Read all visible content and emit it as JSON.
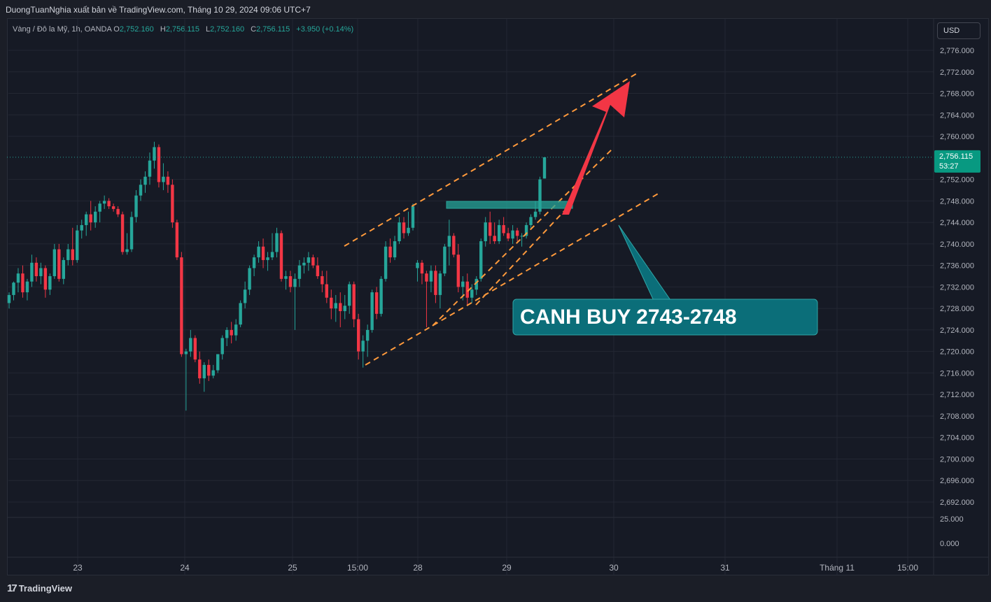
{
  "header": {
    "publisher": "DuongTuanNghia xuất bản về TradingView.com, Tháng 10 29, 2024 09:06 UTC+7"
  },
  "legend": {
    "symbol": "Vàng / Đô la Mỹ, 1h, OANDA",
    "open_label": "O",
    "open": "2,752.160",
    "high_label": "H",
    "high": "2,756.115",
    "low_label": "L",
    "low": "2,752.160",
    "close_label": "C",
    "close": "2,756.115",
    "change": "+3.950 (+0.14%)"
  },
  "currency": "USD",
  "price_tag": {
    "price": "2,756.115",
    "countdown": "53:27"
  },
  "annotation": {
    "text": "CANH BUY 2743-2748"
  },
  "footer": {
    "brand": "TradingView"
  },
  "colors": {
    "up": "#26a69a",
    "down": "#f23645",
    "channel": "#ff9a3c",
    "zone": "#26a69a",
    "arrow": "#f23645",
    "callout": "#0b6e79"
  },
  "chart_data": {
    "type": "candlestick",
    "title": "",
    "xlabel": "",
    "ylabel": "",
    "y_ticks": [
      "2,776.000",
      "2,772.000",
      "2,768.000",
      "2,764.000",
      "2,760.000",
      "2,752.000",
      "2,748.000",
      "2,744.000",
      "2,740.000",
      "2,736.000",
      "2,732.000",
      "2,728.000",
      "2,724.000",
      "2,720.000",
      "2,716.000",
      "2,712.000",
      "2,708.000",
      "2,704.000",
      "2,700.000",
      "2,696.000",
      "2,692.000"
    ],
    "ylim": [
      2689.0,
      2778.0
    ],
    "x_ticks": [
      "23",
      "24",
      "25",
      "15:00",
      "28",
      "29",
      "30",
      "31",
      "Tháng 11",
      "15:00"
    ],
    "volume_ticks": [
      "25.000",
      "0.000"
    ],
    "last_price": 2756.115,
    "ohlc": [
      [
        2729.0,
        2731.0,
        2728.0,
        2730.5
      ],
      [
        2730.5,
        2733.0,
        2729.5,
        2732.8
      ],
      [
        2732.8,
        2735.5,
        2731.0,
        2734.5
      ],
      [
        2734.5,
        2736.0,
        2730.0,
        2731.0
      ],
      [
        2731.0,
        2733.5,
        2729.5,
        2733.0
      ],
      [
        2733.0,
        2738.0,
        2732.0,
        2736.5
      ],
      [
        2736.5,
        2737.5,
        2733.0,
        2734.0
      ],
      [
        2734.0,
        2736.5,
        2732.5,
        2735.5
      ],
      [
        2735.5,
        2736.0,
        2730.0,
        2731.5
      ],
      [
        2731.5,
        2734.5,
        2730.5,
        2734.0
      ],
      [
        2734.0,
        2740.0,
        2733.5,
        2739.0
      ],
      [
        2739.0,
        2740.0,
        2733.0,
        2733.5
      ],
      [
        2733.5,
        2737.5,
        2732.5,
        2737.0
      ],
      [
        2737.0,
        2740.0,
        2736.0,
        2739.0
      ],
      [
        2739.0,
        2743.0,
        2736.0,
        2737.0
      ],
      [
        2737.0,
        2743.5,
        2736.5,
        2742.5
      ],
      [
        2742.5,
        2744.5,
        2741.0,
        2743.5
      ],
      [
        2743.5,
        2746.0,
        2741.5,
        2745.5
      ],
      [
        2745.5,
        2748.0,
        2742.5,
        2744.0
      ],
      [
        2744.0,
        2747.0,
        2743.0,
        2746.0
      ],
      [
        2746.0,
        2748.0,
        2744.0,
        2747.5
      ],
      [
        2747.5,
        2749.0,
        2746.5,
        2748.0
      ],
      [
        2748.0,
        2748.5,
        2746.5,
        2747.0
      ],
      [
        2747.0,
        2747.5,
        2746.0,
        2746.5
      ],
      [
        2746.5,
        2747.0,
        2745.0,
        2745.5
      ],
      [
        2745.5,
        2746.0,
        2738.0,
        2738.5
      ],
      [
        2738.5,
        2742.0,
        2738.0,
        2739.0
      ],
      [
        2739.0,
        2746.0,
        2738.5,
        2745.0
      ],
      [
        2745.0,
        2750.0,
        2744.0,
        2749.0
      ],
      [
        2749.0,
        2752.0,
        2748.0,
        2751.0
      ],
      [
        2751.0,
        2753.5,
        2749.5,
        2752.5
      ],
      [
        2752.5,
        2757.0,
        2751.0,
        2755.5
      ],
      [
        2755.5,
        2759.0,
        2754.0,
        2758.0
      ],
      [
        2758.0,
        2758.5,
        2750.5,
        2751.5
      ],
      [
        2751.5,
        2755.0,
        2750.0,
        2752.5
      ],
      [
        2752.5,
        2753.5,
        2749.5,
        2751.0
      ],
      [
        2751.0,
        2752.0,
        2743.0,
        2744.0
      ],
      [
        2744.0,
        2744.5,
        2737.0,
        2737.5
      ],
      [
        2737.5,
        2738.5,
        2719.0,
        2719.5
      ],
      [
        2719.5,
        2720.5,
        2709.0,
        2720.0
      ],
      [
        2720.0,
        2724.0,
        2719.0,
        2722.5
      ],
      [
        2722.5,
        2723.0,
        2718.0,
        2718.5
      ],
      [
        2718.5,
        2720.0,
        2714.0,
        2715.0
      ],
      [
        2715.0,
        2718.0,
        2712.5,
        2717.5
      ],
      [
        2717.5,
        2718.5,
        2714.5,
        2715.5
      ],
      [
        2715.5,
        2717.5,
        2715.0,
        2716.5
      ],
      [
        2716.5,
        2719.5,
        2716.0,
        2719.5
      ],
      [
        2719.5,
        2723.0,
        2718.5,
        2722.5
      ],
      [
        2722.5,
        2724.5,
        2721.0,
        2724.0
      ],
      [
        2724.0,
        2725.5,
        2721.5,
        2723.0
      ],
      [
        2723.0,
        2726.0,
        2722.0,
        2725.0
      ],
      [
        2725.0,
        2729.5,
        2724.5,
        2729.0
      ],
      [
        2729.0,
        2733.0,
        2728.0,
        2731.5
      ],
      [
        2731.5,
        2736.0,
        2730.5,
        2735.5
      ],
      [
        2735.5,
        2738.0,
        2734.0,
        2737.5
      ],
      [
        2737.5,
        2740.5,
        2736.5,
        2739.5
      ],
      [
        2739.5,
        2741.0,
        2735.5,
        2737.0
      ],
      [
        2737.0,
        2738.5,
        2735.0,
        2737.5
      ],
      [
        2737.5,
        2742.0,
        2737.0,
        2738.5
      ],
      [
        2738.5,
        2743.0,
        2737.5,
        2742.0
      ],
      [
        2742.0,
        2742.5,
        2733.0,
        2733.5
      ],
      [
        2733.5,
        2735.0,
        2731.5,
        2734.0
      ],
      [
        2734.0,
        2735.0,
        2731.0,
        2732.0
      ],
      [
        2732.0,
        2734.5,
        2724.0,
        2733.5
      ],
      [
        2733.5,
        2737.0,
        2732.0,
        2736.0
      ],
      [
        2736.0,
        2737.5,
        2734.5,
        2736.5
      ],
      [
        2736.5,
        2738.5,
        2735.0,
        2737.5
      ],
      [
        2737.5,
        2738.0,
        2735.5,
        2736.0
      ],
      [
        2736.0,
        2737.5,
        2733.5,
        2734.0
      ],
      [
        2734.0,
        2735.0,
        2731.0,
        2732.5
      ],
      [
        2732.5,
        2735.0,
        2729.0,
        2730.0
      ],
      [
        2730.0,
        2731.5,
        2726.0,
        2728.0
      ],
      [
        2728.0,
        2730.5,
        2725.5,
        2729.0
      ],
      [
        2729.0,
        2731.0,
        2724.5,
        2727.5
      ],
      [
        2727.5,
        2730.5,
        2726.0,
        2728.5
      ],
      [
        2728.5,
        2733.0,
        2727.0,
        2732.5
      ],
      [
        2732.5,
        2733.0,
        2724.5,
        2726.0
      ],
      [
        2726.0,
        2727.0,
        2718.5,
        2720.0
      ],
      [
        2720.0,
        2723.0,
        2717.0,
        2722.0
      ],
      [
        2722.0,
        2725.0,
        2719.0,
        2724.0
      ],
      [
        2724.0,
        2731.5,
        2723.5,
        2731.0
      ],
      [
        2731.0,
        2732.0,
        2726.0,
        2727.0
      ],
      [
        2727.0,
        2734.0,
        2726.5,
        2733.5
      ],
      [
        2733.5,
        2740.5,
        2733.0,
        2739.5
      ],
      [
        2739.5,
        2741.0,
        2736.5,
        2737.5
      ],
      [
        2737.5,
        2741.5,
        2737.0,
        2740.5
      ],
      [
        2740.5,
        2745.0,
        2740.0,
        2744.0
      ],
      [
        2744.0,
        2745.0,
        2741.0,
        2742.0
      ],
      [
        2742.0,
        2746.0,
        2741.5,
        2743.0
      ],
      [
        2743.0,
        2747.5,
        2742.5,
        2747.0
      ],
      [
        2735.5,
        2737.0,
        2733.0,
        2736.5
      ],
      [
        2736.5,
        2737.0,
        2732.5,
        2734.5
      ],
      [
        2734.5,
        2735.0,
        2724.5,
        2733.0
      ],
      [
        2733.0,
        2736.0,
        2731.0,
        2735.0
      ],
      [
        2735.0,
        2736.0,
        2729.0,
        2730.5
      ],
      [
        2730.5,
        2735.0,
        2728.0,
        2734.5
      ],
      [
        2734.5,
        2740.0,
        2734.0,
        2739.5
      ],
      [
        2739.5,
        2744.5,
        2736.0,
        2741.5
      ],
      [
        2741.5,
        2742.0,
        2737.5,
        2738.0
      ],
      [
        2738.0,
        2740.0,
        2731.0,
        2732.0
      ],
      [
        2732.0,
        2734.0,
        2729.5,
        2733.0
      ],
      [
        2733.0,
        2734.5,
        2728.5,
        2730.0
      ],
      [
        2730.0,
        2732.5,
        2729.0,
        2731.5
      ],
      [
        2731.5,
        2734.0,
        2730.5,
        2733.5
      ],
      [
        2733.5,
        2741.0,
        2733.0,
        2740.5
      ],
      [
        2740.5,
        2745.0,
        2739.5,
        2744.0
      ],
      [
        2744.0,
        2746.0,
        2740.0,
        2741.5
      ],
      [
        2741.5,
        2744.0,
        2740.0,
        2740.5
      ],
      [
        2740.5,
        2744.5,
        2740.0,
        2743.5
      ],
      [
        2743.5,
        2745.0,
        2741.5,
        2742.0
      ],
      [
        2742.0,
        2743.0,
        2740.5,
        2741.0
      ],
      [
        2741.0,
        2743.5,
        2740.0,
        2742.5
      ],
      [
        2742.5,
        2743.0,
        2740.5,
        2741.5
      ],
      [
        2741.5,
        2742.0,
        2739.5,
        2741.5
      ],
      [
        2741.5,
        2744.0,
        2741.0,
        2743.5
      ],
      [
        2743.5,
        2745.5,
        2743.0,
        2745.0
      ],
      [
        2745.0,
        2748.0,
        2744.5,
        2746.0
      ],
      [
        2746.0,
        2752.5,
        2745.5,
        2752.0
      ],
      [
        2752.16,
        2756.115,
        2752.16,
        2756.115
      ]
    ],
    "annotations": [
      "CANH BUY 2743-2748"
    ]
  }
}
